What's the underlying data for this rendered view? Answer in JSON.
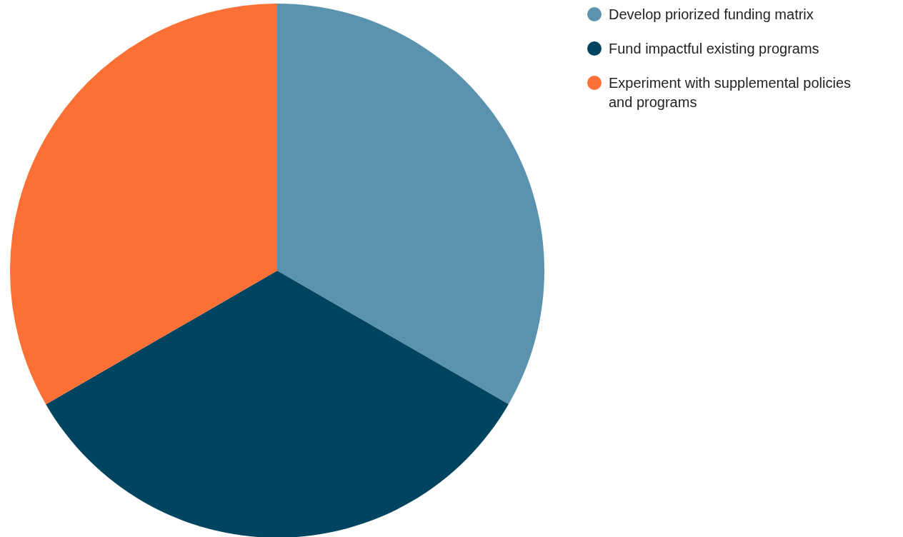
{
  "chart_data": {
    "type": "pie",
    "categories": [
      "Develop priorized funding matrix",
      "Fund impactful existing programs",
      "Experiment with supplemental policies and programs"
    ],
    "values": [
      33.33,
      33.33,
      33.34
    ],
    "colors": [
      "#5b92ae",
      "#00445f",
      "#fc7035"
    ],
    "legend": "top right"
  }
}
